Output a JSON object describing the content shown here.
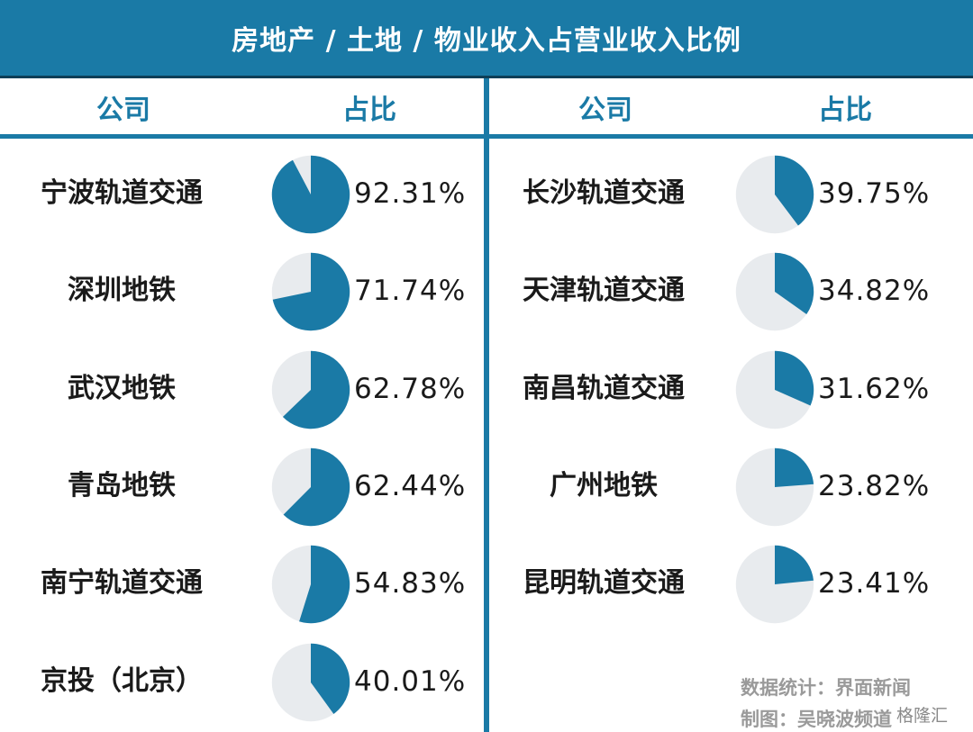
{
  "title": "房地产 / 土地 / 物业收入占营业收入比例",
  "headers": {
    "company": "公司",
    "share": "占比"
  },
  "colors": {
    "accent": "#1a7aa6",
    "remainder": "#e8ebee",
    "text": "#1a1a1a"
  },
  "chart_data": {
    "type": "pie",
    "title": "房地产 / 土地 / 物业收入占营业收入比例",
    "items": [
      {
        "company": "宁波轨道交通",
        "value": 92.31,
        "label": "92.31%"
      },
      {
        "company": "深圳地铁",
        "value": 71.74,
        "label": "71.74%"
      },
      {
        "company": "武汉地铁",
        "value": 62.78,
        "label": "62.78%"
      },
      {
        "company": "青岛地铁",
        "value": 62.44,
        "label": "62.44%"
      },
      {
        "company": "南宁轨道交通",
        "value": 54.83,
        "label": "54.83%"
      },
      {
        "company": "京投（北京）",
        "value": 40.01,
        "label": "40.01%"
      },
      {
        "company": "长沙轨道交通",
        "value": 39.75,
        "label": "39.75%"
      },
      {
        "company": "天津轨道交通",
        "value": 34.82,
        "label": "34.82%"
      },
      {
        "company": "南昌轨道交通",
        "value": 31.62,
        "label": "31.62%"
      },
      {
        "company": "广州地铁",
        "value": 23.82,
        "label": "23.82%"
      },
      {
        "company": "昆明轨道交通",
        "value": 23.41,
        "label": "23.41%"
      }
    ]
  },
  "credits": {
    "data_source": "数据统计：界面新闻",
    "made_by": "制图：吴晓波频道"
  },
  "watermark": "格隆汇"
}
